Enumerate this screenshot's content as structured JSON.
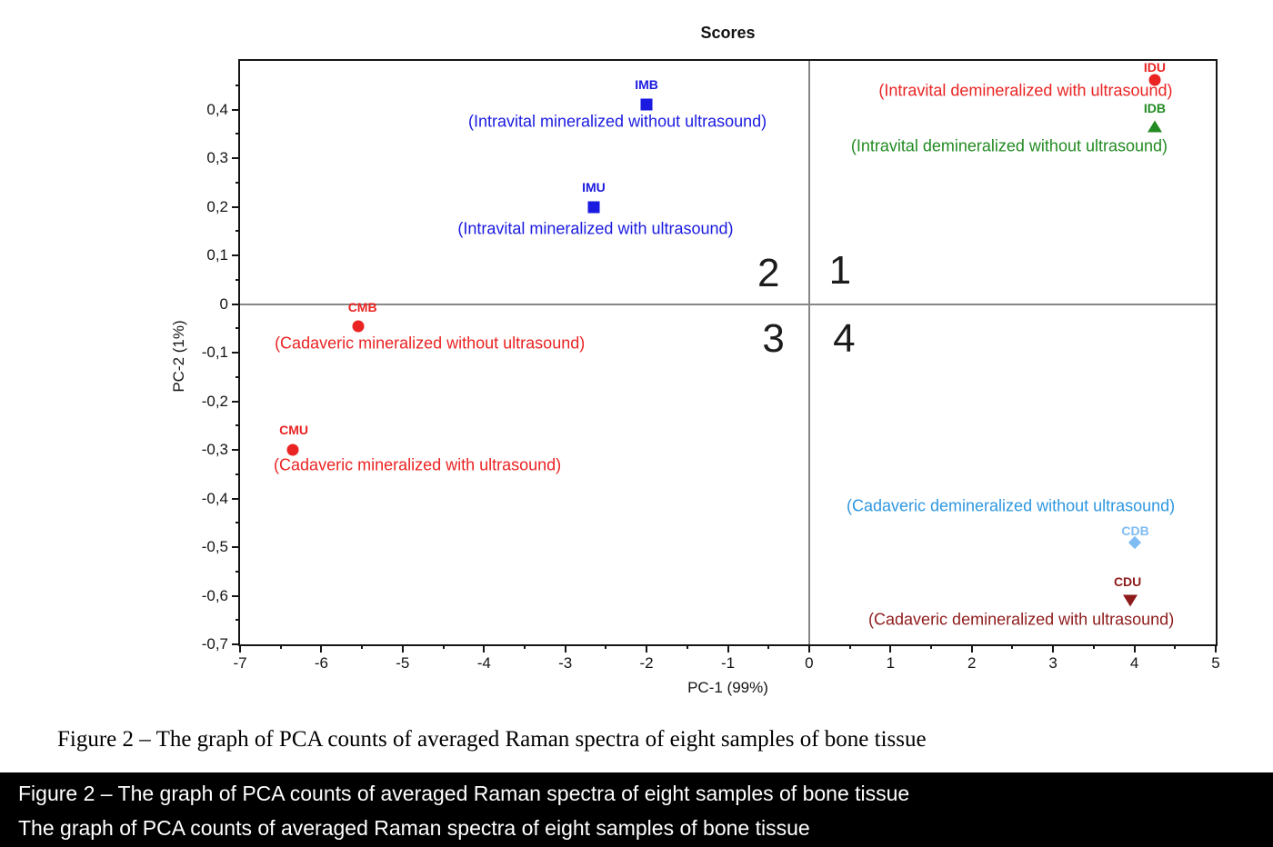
{
  "figure": {
    "title": "Scores",
    "xlabel": "PC-1 (99%)",
    "ylabel": "PC-2 (1%)"
  },
  "caption": {
    "serif_line": "Figure 2 – The graph of PCA counts of averaged Raman spectra of eight samples of bone tissue",
    "bar_line1": "Figure 2 – The graph of PCA counts of averaged Raman spectra of eight samples of bone tissue",
    "bar_line2": "The graph of PCA counts of averaged Raman spectra of eight samples of bone tissue"
  },
  "colors": {
    "blue": "#1a1ae0",
    "red": "#ea2323",
    "green": "#228b22",
    "light_blue_label": "#2e97e0",
    "light_blue_marker": "#7fbcf2",
    "dark_red": "#8e1b1b",
    "quadrant_line": "#878787",
    "axis": "#151515"
  },
  "chart_data": {
    "type": "scatter",
    "title": "Scores",
    "xlabel": "PC-1 (99%)",
    "ylabel": "PC-2 (1%)",
    "xlim": [
      -7,
      5
    ],
    "ylim": [
      -0.7,
      0.5
    ],
    "grid": false,
    "zero_lines": true,
    "x_ticks": {
      "values": [
        -7,
        -6,
        -5,
        -4,
        -3,
        -2,
        -1,
        0,
        1,
        2,
        3,
        4,
        5
      ],
      "labels": [
        "-7",
        "-6",
        "-5",
        "-4",
        "-3",
        "-2",
        "-1",
        "0",
        "1",
        "2",
        "3",
        "4",
        "5"
      ],
      "minor_values": [
        -6.5,
        -5.5,
        -4.5,
        -3.5,
        -2.5,
        -1.5,
        -0.5,
        0.5,
        1.5,
        2.5,
        3.5,
        4.5
      ]
    },
    "y_ticks": {
      "values": [
        0.4,
        0.3,
        0.2,
        0.1,
        0,
        -0.1,
        -0.2,
        -0.3,
        -0.4,
        -0.5,
        -0.6,
        -0.7
      ],
      "labels": [
        "0,4",
        "0,3",
        "0,2",
        "0,1",
        "0",
        "-0,1",
        "-0,2",
        "-0,3",
        "-0,4",
        "-0,5",
        "-0,6",
        "-0,7"
      ],
      "minor_values": [
        0.45,
        0.35,
        0.25,
        0.15,
        0.05,
        -0.05,
        -0.15,
        -0.25,
        -0.35,
        -0.45,
        -0.55,
        -0.65
      ]
    },
    "quadrant_labels": [
      {
        "text": "1",
        "x": 0.38,
        "y": 0.068
      },
      {
        "text": "2",
        "x": -0.5,
        "y": 0.062
      },
      {
        "text": "3",
        "x": -0.44,
        "y": -0.072
      },
      {
        "text": "4",
        "x": 0.43,
        "y": -0.072
      }
    ],
    "points": [
      {
        "code": "IMB",
        "desc": "(Intravital mineralized without ultrasound)",
        "x": -2.0,
        "y": 0.41,
        "shape": "square",
        "marker_color": "#1a1ae0",
        "code_color": "#1a1ae0",
        "desc_color": "#1a1ae0",
        "code_dx": 0,
        "code_dy": -22,
        "desc_dx": -32,
        "desc_dy": 19
      },
      {
        "code": "IMU",
        "desc": "(Intravital mineralized with ultrasound)",
        "x": -2.65,
        "y": 0.2,
        "shape": "square",
        "marker_color": "#1a1ae0",
        "code_color": "#1a1ae0",
        "desc_color": "#1a1ae0",
        "code_dx": 0,
        "code_dy": -22,
        "desc_dx": 2,
        "desc_dy": 24
      },
      {
        "code": "IDU",
        "desc": "(Intravital demineralized with ultrasound)",
        "x": 4.25,
        "y": 0.46,
        "shape": "circle",
        "marker_color": "#ea2323",
        "code_color": "#ea2323",
        "desc_color": "#ea2323",
        "code_dx": 0,
        "code_dy": -14,
        "desc_dx": -142,
        "desc_dy": 12
      },
      {
        "code": "IDB",
        "desc": "(Intravital demineralized without ultrasound)",
        "x": 4.25,
        "y": 0.365,
        "shape": "triangle-up",
        "marker_color": "#228b22",
        "code_color": "#228b22",
        "desc_color": "#228b22",
        "code_dx": 0,
        "code_dy": -20,
        "desc_dx": -160,
        "desc_dy": 22
      },
      {
        "code": "CMB",
        "desc": "(Cadaveric mineralized without ultrasound)",
        "x": -5.55,
        "y": -0.045,
        "shape": "circle",
        "marker_color": "#ea2323",
        "code_color": "#ea2323",
        "desc_color": "#ea2323",
        "code_dx": 5,
        "code_dy": -21,
        "desc_dx": 79,
        "desc_dy": 19
      },
      {
        "code": "CMU",
        "desc": "(Cadaveric mineralized with ultrasound)",
        "x": -6.35,
        "y": -0.3,
        "shape": "circle",
        "marker_color": "#ea2323",
        "code_color": "#ea2323",
        "desc_color": "#ea2323",
        "code_dx": 1,
        "code_dy": -22,
        "desc_dx": 137,
        "desc_dy": 17
      },
      {
        "code": "CDB",
        "desc": "(Cadaveric demineralized without ultrasound)",
        "x": 4.0,
        "y": -0.49,
        "shape": "diamond",
        "marker_color": "#7fbcf2",
        "code_color": "#7fbcf2",
        "desc_color": "#2e97e0",
        "code_dx": 1,
        "code_dy": -13,
        "desc_dx": -136,
        "desc_dy": -40
      },
      {
        "code": "CDU",
        "desc": "(Cadaveric demineralized with ultrasound)",
        "x": 3.95,
        "y": -0.61,
        "shape": "triangle-down",
        "marker_color": "#8e1b1b",
        "code_color": "#8e1b1b",
        "desc_color": "#8e1b1b",
        "code_dx": -3,
        "code_dy": -21,
        "desc_dx": -120,
        "desc_dy": 21
      }
    ]
  }
}
